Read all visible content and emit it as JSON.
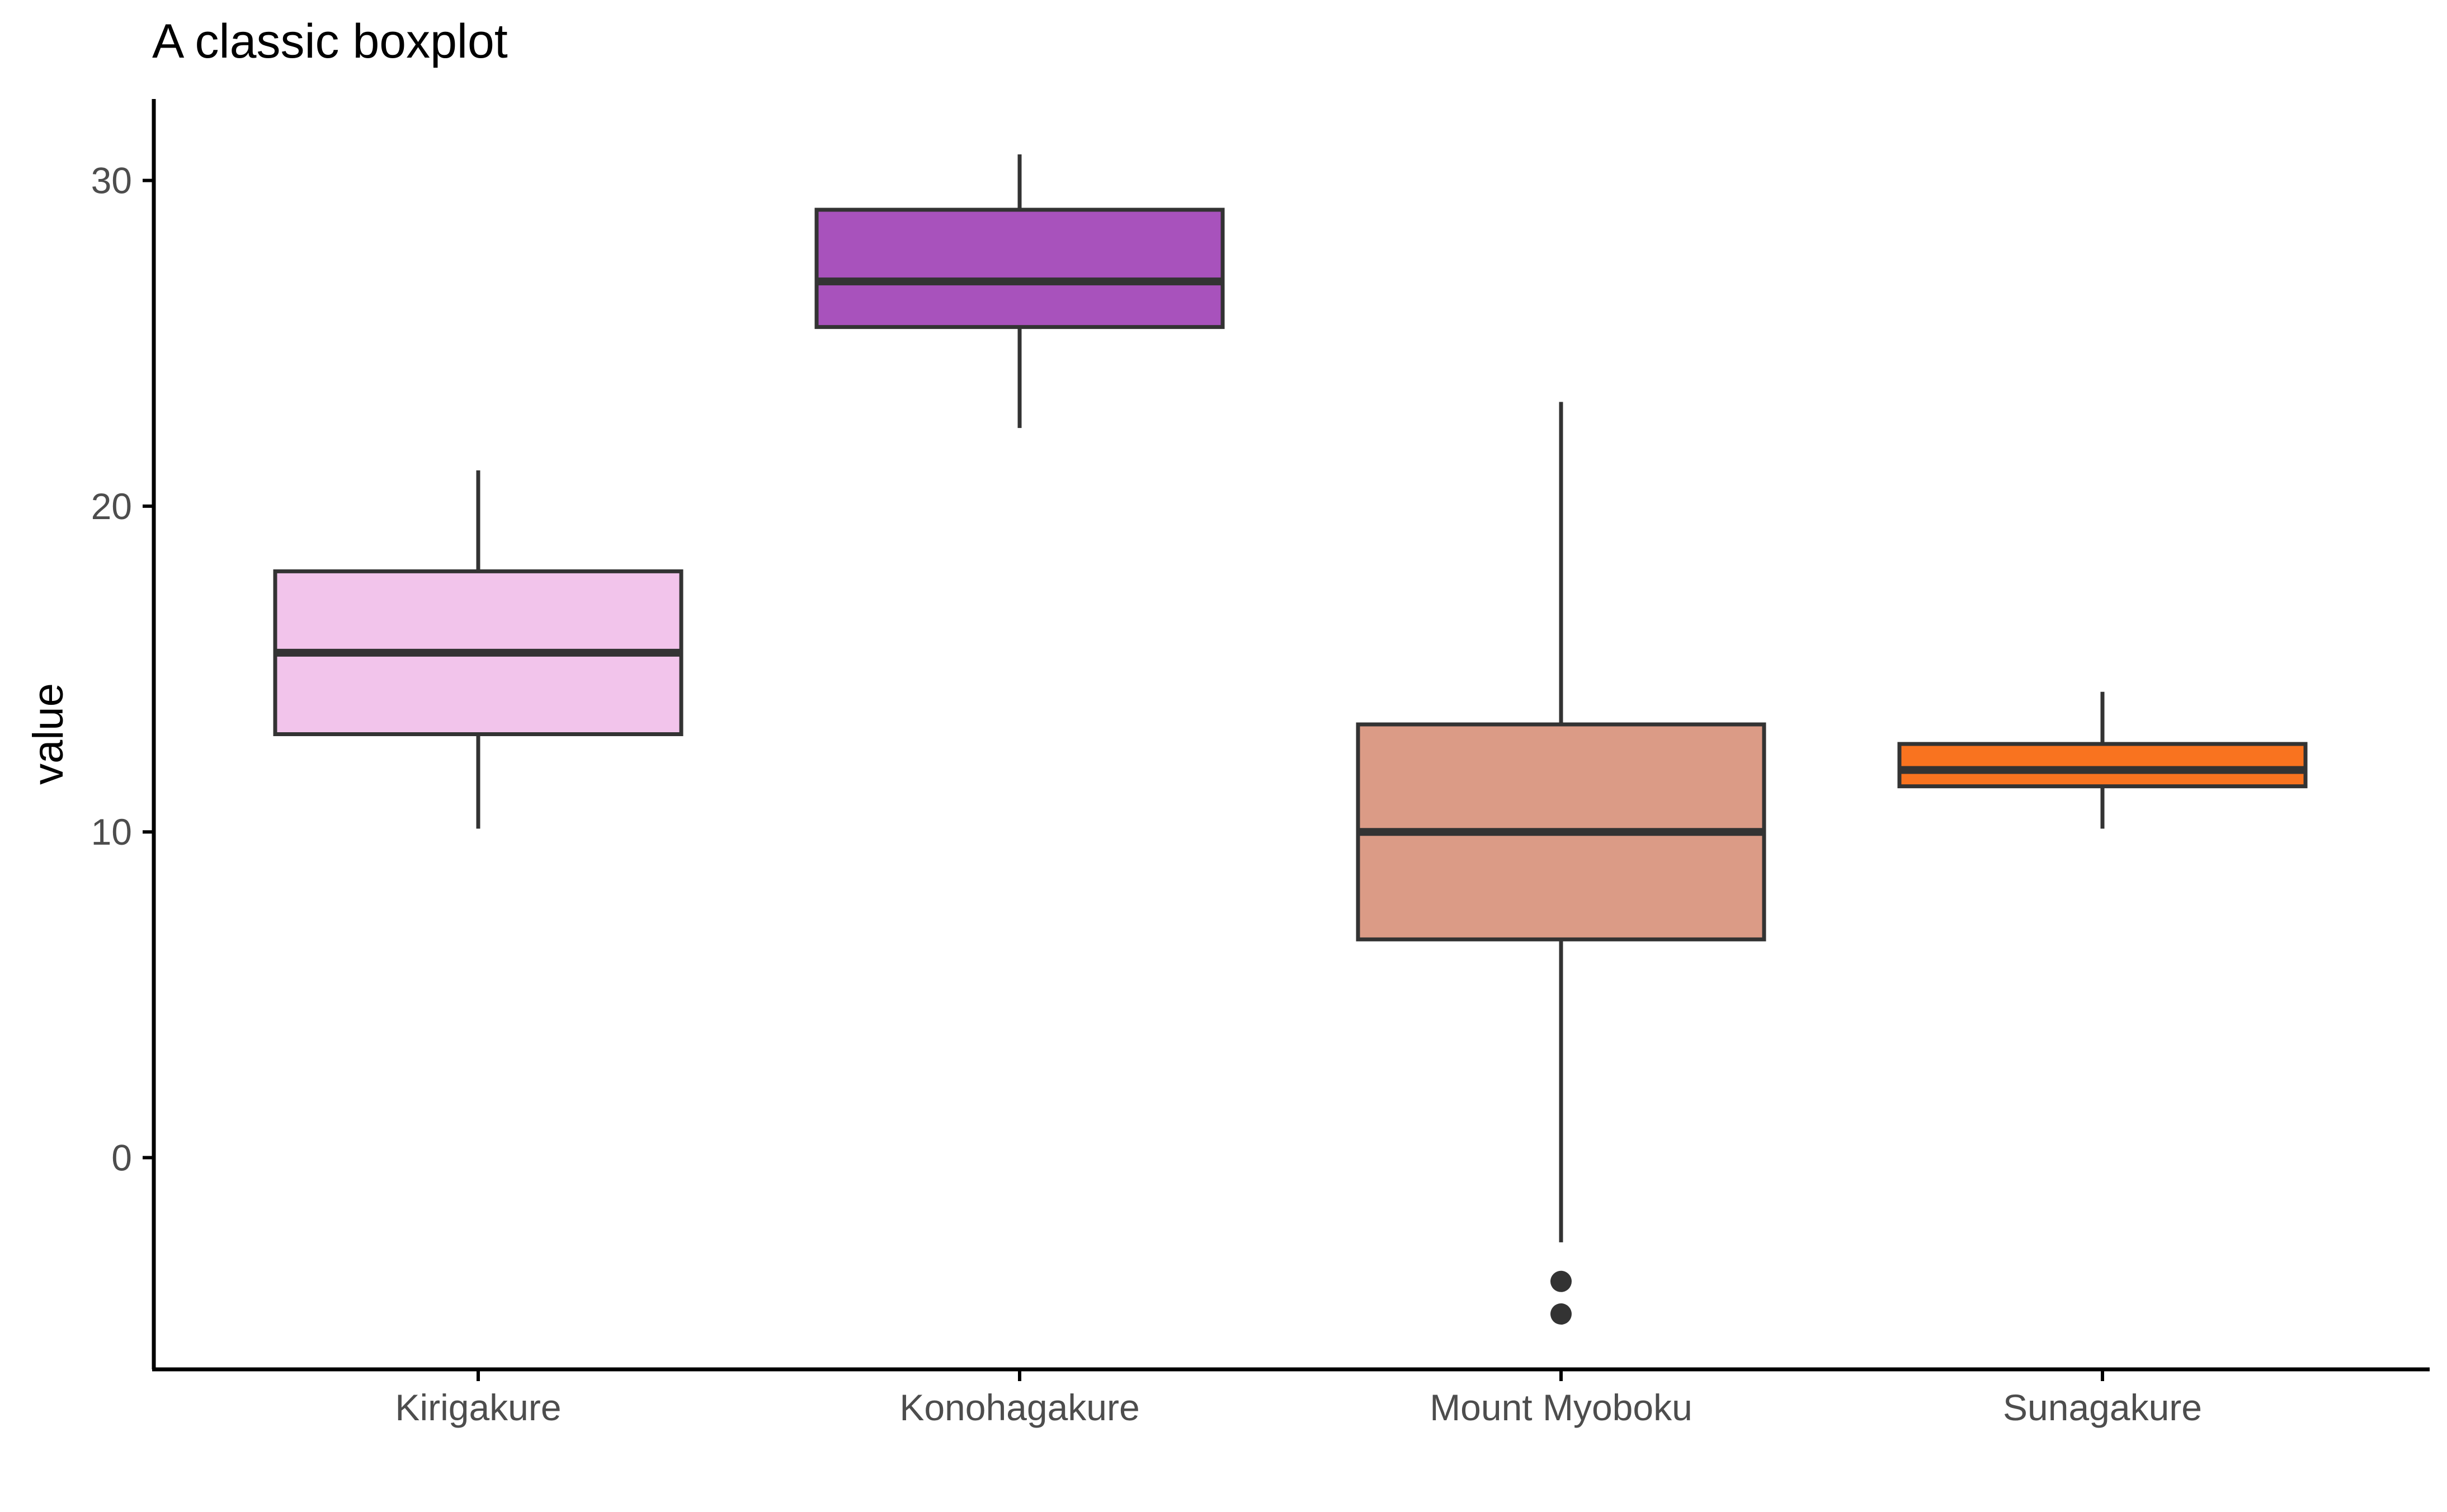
{
  "chart_data": {
    "type": "boxplot",
    "title": "A classic boxplot",
    "xlabel": "",
    "ylabel": "value",
    "ylim": [
      -6.5,
      32.5
    ],
    "yticks": [
      0,
      10,
      20,
      30
    ],
    "grid": false,
    "legend": "none",
    "categories": [
      "Kirigakure",
      "Konohagakure",
      "Mount Myoboku",
      "Sunagakure"
    ],
    "boxes": [
      {
        "category": "Kirigakure",
        "min": 10.1,
        "q1": 13.0,
        "median": 15.5,
        "q3": 18.0,
        "max": 21.1,
        "outliers": [],
        "color": "#F2C4EB"
      },
      {
        "category": "Konohagakure",
        "min": 22.4,
        "q1": 25.5,
        "median": 26.9,
        "q3": 29.1,
        "max": 30.8,
        "outliers": [],
        "color": "#A852BC"
      },
      {
        "category": "Mount Myoboku",
        "min": -2.6,
        "q1": 6.7,
        "median": 10.0,
        "q3": 13.3,
        "max": 23.2,
        "outliers": [
          -3.8,
          -4.8
        ],
        "color": "#DB9B86"
      },
      {
        "category": "Sunagakure",
        "min": 10.1,
        "q1": 11.4,
        "median": 11.9,
        "q3": 12.7,
        "max": 14.3,
        "outliers": [],
        "color": "#F9731F"
      }
    ]
  }
}
